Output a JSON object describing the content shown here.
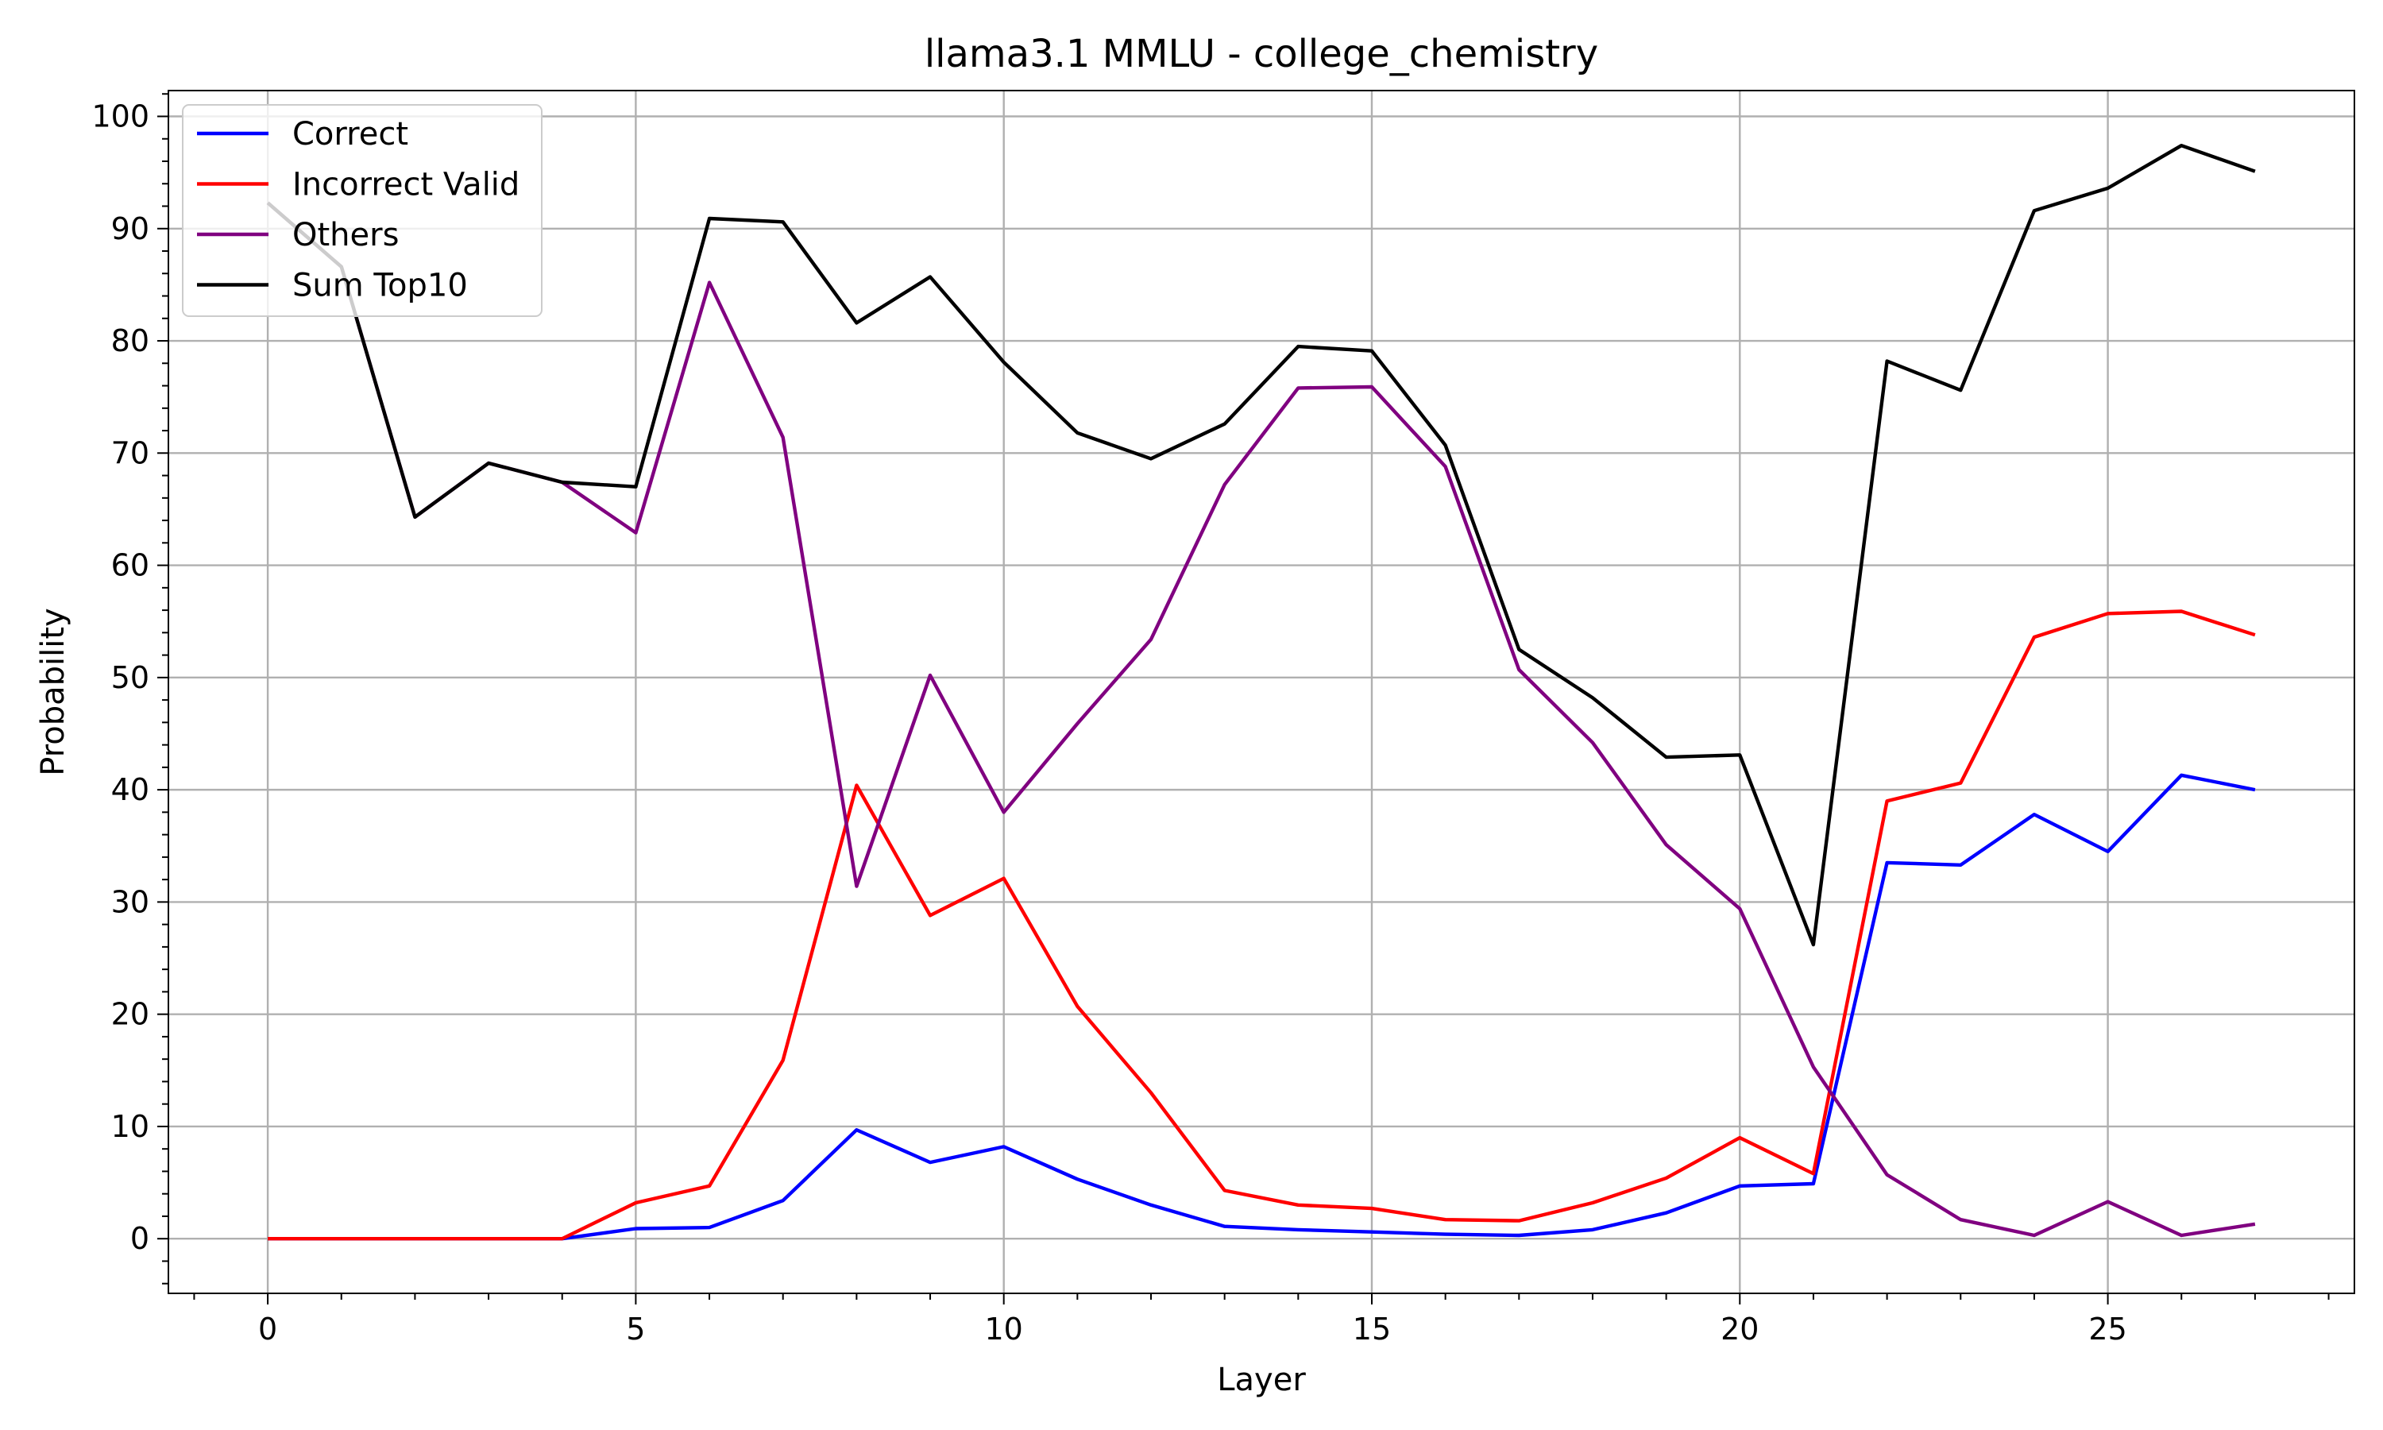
{
  "chart_data": {
    "type": "line",
    "title": "llama3.1 MMLU - college_chemistry",
    "xlabel": "Layer",
    "ylabel": "Probability",
    "xlim": [
      -1.35,
      28.35
    ],
    "ylim": [
      -4.87,
      102.3
    ],
    "xticks": [
      0,
      5,
      10,
      15,
      20,
      25
    ],
    "yticks": [
      0,
      10,
      20,
      30,
      40,
      50,
      60,
      70,
      80,
      90,
      100
    ],
    "grid": true,
    "minor_ticks": true,
    "legend_position": "upper left",
    "x": [
      0,
      1,
      2,
      3,
      4,
      5,
      6,
      7,
      8,
      9,
      10,
      11,
      12,
      13,
      14,
      15,
      16,
      17,
      18,
      19,
      20,
      21,
      22,
      23,
      24,
      25,
      26,
      27
    ],
    "series": [
      {
        "name": "Correct",
        "color": "#0000ff",
        "values": [
          0,
          0,
          0,
          0,
          0,
          0.9,
          1.0,
          3.4,
          9.7,
          6.8,
          8.2,
          5.3,
          3.0,
          1.1,
          0.8,
          0.6,
          0.4,
          0.3,
          0.8,
          2.3,
          4.7,
          4.9,
          33.5,
          33.3,
          37.8,
          34.5,
          41.3,
          40.0
        ]
      },
      {
        "name": "Incorrect Valid",
        "color": "#ff0000",
        "values": [
          0,
          0,
          0,
          0,
          0,
          3.2,
          4.7,
          15.9,
          40.4,
          28.8,
          32.1,
          20.7,
          13.0,
          4.3,
          3.0,
          2.7,
          1.7,
          1.6,
          3.2,
          5.4,
          9.0,
          5.8,
          39.0,
          40.6,
          53.6,
          55.7,
          55.9,
          53.8
        ]
      },
      {
        "name": "Others",
        "color": "#800080",
        "values": [
          92.3,
          86.6,
          64.3,
          69.1,
          67.4,
          62.9,
          85.2,
          71.4,
          31.4,
          50.2,
          38.0,
          45.9,
          53.4,
          67.2,
          75.8,
          75.9,
          68.8,
          50.7,
          44.2,
          35.1,
          29.4,
          15.3,
          5.7,
          1.7,
          0.3,
          3.3,
          0.3,
          1.3
        ]
      },
      {
        "name": "Sum Top10",
        "color": "#000000",
        "values": [
          92.3,
          86.6,
          64.3,
          69.1,
          67.4,
          67.0,
          90.9,
          90.6,
          81.6,
          85.7,
          78.1,
          71.8,
          69.5,
          72.6,
          79.5,
          79.1,
          70.7,
          52.5,
          48.2,
          42.9,
          43.1,
          26.2,
          78.2,
          75.6,
          91.6,
          93.6,
          97.4,
          95.1
        ]
      }
    ]
  }
}
